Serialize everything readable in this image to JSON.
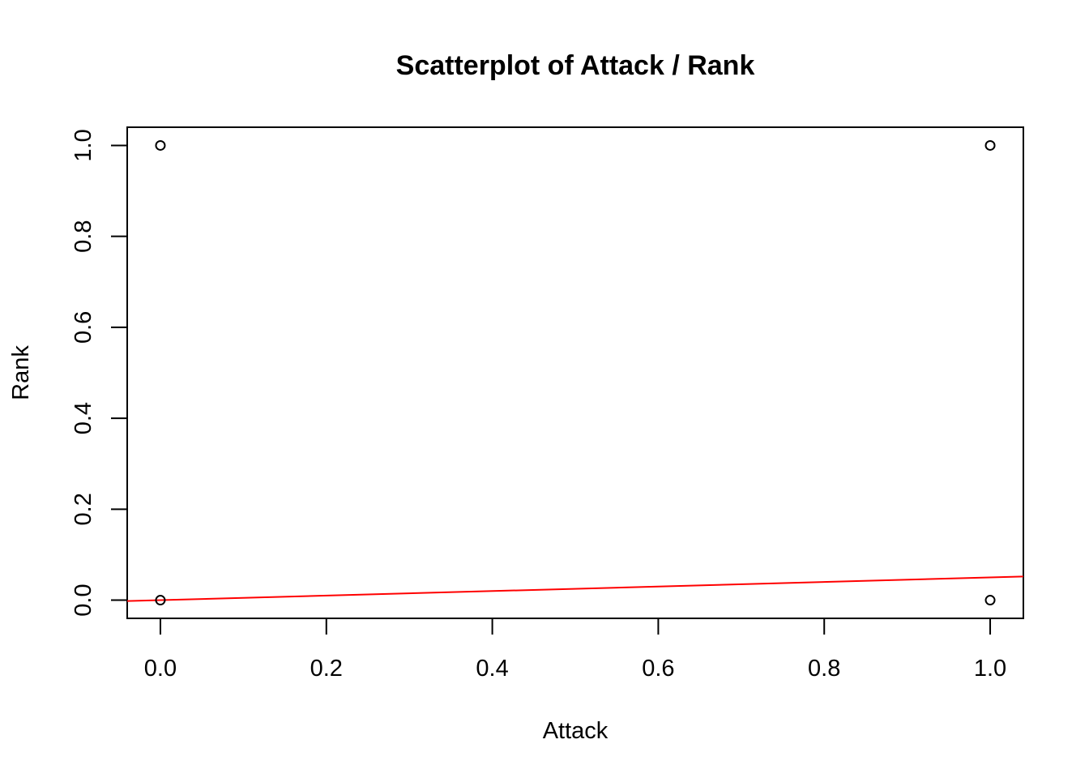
{
  "chart_data": {
    "type": "scatter",
    "title": "Scatterplot of Attack / Rank",
    "xlabel": "Attack",
    "ylabel": "Rank",
    "xlim": [
      -0.04,
      1.04
    ],
    "ylim": [
      -0.04,
      1.04
    ],
    "x_ticks": [
      0.0,
      0.2,
      0.4,
      0.6,
      0.8,
      1.0
    ],
    "x_tick_labels": [
      "0.0",
      "0.2",
      "0.4",
      "0.6",
      "0.8",
      "1.0"
    ],
    "y_ticks": [
      0.0,
      0.2,
      0.4,
      0.6,
      0.8,
      1.0
    ],
    "y_tick_labels": [
      "0.0",
      "0.2",
      "0.4",
      "0.6",
      "0.8",
      "1.0"
    ],
    "grid": false,
    "points": [
      {
        "x": 0,
        "y": 1
      },
      {
        "x": 1,
        "y": 1
      },
      {
        "x": 0,
        "y": 0
      },
      {
        "x": 1,
        "y": 0
      }
    ],
    "point_style": "open-circle",
    "point_color": "#000000",
    "fit_line": {
      "intercept": 0.0,
      "slope": 0.05,
      "color": "#ff0000"
    }
  }
}
